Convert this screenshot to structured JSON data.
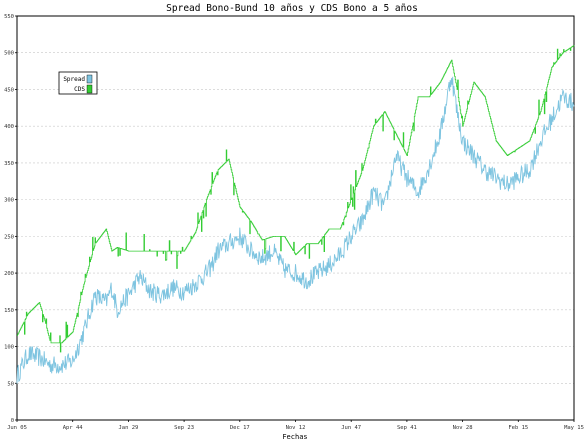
{
  "chart_data": {
    "type": "line",
    "title": "Spread Bono-Bund 10 años y CDS Bono a 5 años",
    "xlabel": "Fechas",
    "ylabel": "",
    "ylim": [
      0,
      550
    ],
    "yticks": [
      0,
      50,
      100,
      150,
      200,
      250,
      300,
      350,
      400,
      450,
      500,
      550
    ],
    "xtick_labels": [
      "Jun 05",
      "Apr 44",
      "Jan 29",
      "Sep 23",
      "Dec 17",
      "Nov 12",
      "Jun 47",
      "Sep 41",
      "Nov 28",
      "Feb 15",
      "May 15"
    ],
    "grid": true,
    "legend_position": "upper-left",
    "series": [
      {
        "name": "Spread",
        "color": "#7ec4e0",
        "x": [
          0.0,
          0.02,
          0.04,
          0.06,
          0.08,
          0.1,
          0.12,
          0.14,
          0.16,
          0.17,
          0.18,
          0.2,
          0.22,
          0.24,
          0.26,
          0.28,
          0.3,
          0.32,
          0.34,
          0.35,
          0.36,
          0.38,
          0.4,
          0.42,
          0.44,
          0.46,
          0.48,
          0.5,
          0.52,
          0.54,
          0.56,
          0.58,
          0.6,
          0.62,
          0.64,
          0.66,
          0.68,
          0.7,
          0.72,
          0.74,
          0.76,
          0.78,
          0.79,
          0.8,
          0.82,
          0.84,
          0.86,
          0.88,
          0.9,
          0.92,
          0.94,
          0.96,
          0.98,
          1.0
        ],
        "values": [
          60,
          90,
          85,
          75,
          75,
          80,
          120,
          170,
          160,
          180,
          150,
          170,
          195,
          175,
          170,
          180,
          175,
          185,
          200,
          210,
          230,
          240,
          250,
          230,
          220,
          230,
          205,
          200,
          190,
          200,
          210,
          225,
          250,
          270,
          310,
          290,
          360,
          330,
          310,
          345,
          390,
          470,
          420,
          380,
          360,
          340,
          330,
          320,
          330,
          340,
          380,
          410,
          440,
          430
        ]
      },
      {
        "name": "CDS",
        "color": "#33cc33",
        "x": [
          0.0,
          0.02,
          0.04,
          0.05,
          0.06,
          0.08,
          0.1,
          0.12,
          0.14,
          0.16,
          0.17,
          0.18,
          0.2,
          0.22,
          0.24,
          0.26,
          0.28,
          0.3,
          0.32,
          0.34,
          0.36,
          0.38,
          0.4,
          0.42,
          0.44,
          0.46,
          0.48,
          0.5,
          0.52,
          0.54,
          0.56,
          0.58,
          0.6,
          0.62,
          0.64,
          0.66,
          0.68,
          0.7,
          0.72,
          0.74,
          0.76,
          0.78,
          0.79,
          0.8,
          0.82,
          0.84,
          0.86,
          0.88,
          0.9,
          0.92,
          0.94,
          0.96,
          0.98,
          1.0
        ],
        "values": [
          115,
          145,
          160,
          135,
          105,
          105,
          120,
          185,
          240,
          260,
          230,
          235,
          230,
          230,
          230,
          230,
          230,
          230,
          255,
          300,
          340,
          355,
          290,
          270,
          245,
          250,
          250,
          225,
          240,
          240,
          260,
          260,
          300,
          340,
          400,
          420,
          390,
          360,
          440,
          440,
          460,
          490,
          450,
          400,
          460,
          440,
          380,
          360,
          370,
          380,
          420,
          480,
          500,
          510
        ]
      }
    ]
  }
}
